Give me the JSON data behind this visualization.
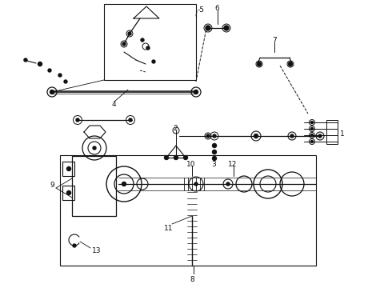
{
  "bg_color": "#ffffff",
  "fg_color": "#111111",
  "figsize": [
    4.9,
    3.6
  ],
  "dpi": 100
}
